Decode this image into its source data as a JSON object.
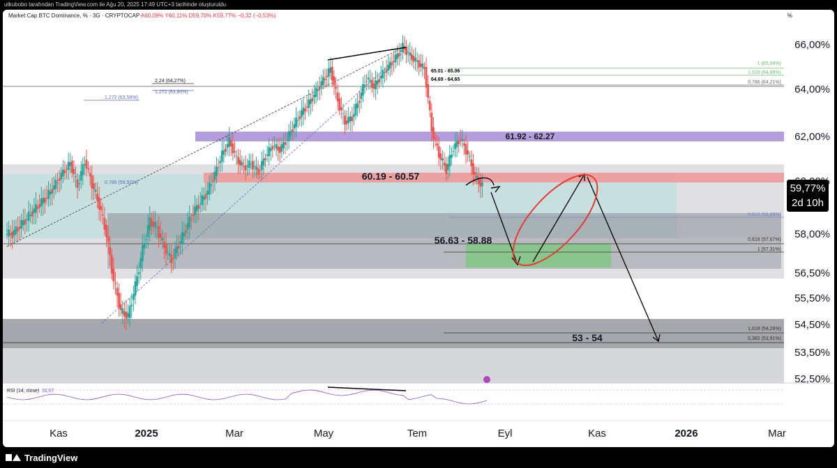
{
  "topbar": {
    "text": "utkubobo tarafından TradingView.com ile Ağu 20, 2025 17:49 UTC+3 tarihinde oluşturuldu"
  },
  "header": {
    "symbol": "Market Cap BTC Dominance, % · 3G · CRYPTOCAP",
    "open": "A60,09%",
    "high": "Y60,11%",
    "low": "D59,70%",
    "close": "K59,77%",
    "change": "−0,32 (−0,53%)"
  },
  "percent_label": "%",
  "last_price": {
    "value": "59,77%",
    "countdown": "2d 10h"
  },
  "footer": {
    "brand": "TradingView"
  },
  "colors": {
    "up": "#26a69a",
    "down": "#ef5350",
    "purple_zone": "#b39ddb",
    "red_zone": "#ef9a9a",
    "green_zone": "#81c784",
    "teal_zone": "#b2dfdb",
    "gray_zone": "#9e9e9e",
    "rsi": "#7e57c2"
  },
  "chart_data": {
    "type": "candlestick",
    "title": "Market Cap BTC Dominance, % · 3G · CRYPTOCAP",
    "y_ticks": [
      "66,00%",
      "64,00%",
      "62,00%",
      "60,00%",
      "58,00%",
      "56,50%",
      "55,50%",
      "54,50%",
      "53,50%",
      "52,50%"
    ],
    "x_ticks": [
      "Kas",
      "2025",
      "Mar",
      "May",
      "Tem",
      "Eyl",
      "Kas",
      "2026",
      "Mar"
    ],
    "close_path": [
      58.0,
      58.3,
      58.6,
      58.9,
      59.2,
      59.5,
      59.9,
      60.4,
      60.8,
      59.8,
      60.9,
      59.9,
      59.1,
      58.0,
      56.2,
      55.0,
      54.8,
      56.0,
      57.4,
      58.5,
      58.2,
      57.5,
      57.0,
      57.6,
      58.2,
      58.8,
      59.2,
      59.6,
      60.3,
      61.2,
      61.8,
      61.0,
      60.6,
      60.8,
      60.4,
      61.1,
      61.6,
      61.4,
      61.9,
      62.5,
      63.0,
      63.4,
      63.9,
      64.4,
      64.9,
      63.5,
      62.6,
      62.8,
      63.6,
      64.5,
      64.1,
      64.6,
      65.0,
      65.4,
      65.9,
      65.5,
      65.2,
      64.9,
      62.3,
      61.2,
      60.5,
      61.5,
      61.9,
      61.2,
      60.2,
      59.8
    ],
    "zones": [
      {
        "label": "61.92 - 62.27",
        "from": 61.92,
        "to": 62.27
      },
      {
        "label": "60.19 - 60.57",
        "from": 60.19,
        "to": 60.57
      },
      {
        "label": "56.63 - 58.88",
        "from": 56.63,
        "to": 58.88
      },
      {
        "label": "53 - 54",
        "from": 53,
        "to": 54
      }
    ],
    "fib_labels": [
      "2,24 (64,27%)",
      "1,272 (63,58%)",
      "1,272 (63,80%)",
      "0,786 (59,92%)",
      "1 (65,04%)",
      "1,618 (64,69%)",
      "65.01 - 65.06",
      "64.69 - 64.65",
      "0,786 (64,21%)",
      "0,618 (58,68%)",
      "0,618 (57,67%)",
      "1 (57,31%)",
      "1,618 (54,26%)",
      "0,382 (53,91%)"
    ],
    "rsi": {
      "label": "RSI (14, close)",
      "value": "32,07"
    }
  }
}
